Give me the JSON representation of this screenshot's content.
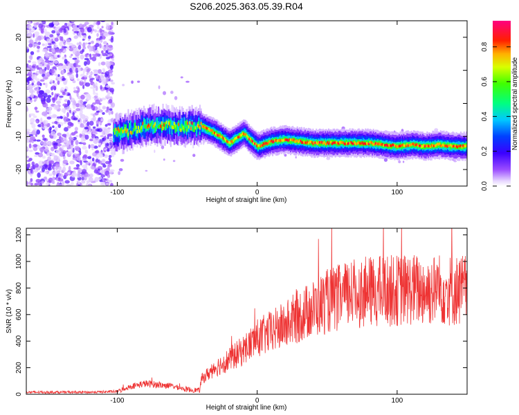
{
  "figure": {
    "title": "S206.2025.363.05.39.R04"
  },
  "chart_data": [
    {
      "type": "heatmap",
      "title": "S206.2025.363.05.39.R04",
      "xlabel": "Height of straight line (km)",
      "ylabel": "Frequency (Hz)",
      "xlim": [
        -165,
        150
      ],
      "ylim": [
        -25,
        25
      ],
      "xticks": [
        -100,
        0,
        100
      ],
      "yticks": [
        -20,
        -10,
        0,
        10,
        20
      ],
      "colorbar": {
        "label": "Normalized spectral amplitude",
        "range": [
          0,
          0.95
        ],
        "ticks": [
          0.0,
          0.2,
          0.4,
          0.6,
          0.8
        ],
        "colormap": "rainbow (white-purple-blue-cyan-green-yellow-red-magenta)"
      },
      "ridge_line": {
        "x": [
          -100,
          -90,
          -80,
          -70,
          -60,
          -50,
          -40,
          -30,
          -20,
          -10,
          0,
          10,
          20,
          30,
          40,
          50,
          60,
          70,
          80,
          90,
          100,
          110,
          120,
          130,
          140,
          150
        ],
        "y": [
          -9,
          -8,
          -7,
          -6.5,
          -7,
          -7,
          -7,
          -9,
          -12,
          -9,
          -13,
          -11.5,
          -11,
          -11.5,
          -12,
          -12,
          -12,
          -12,
          -12,
          -12.5,
          -13,
          -12.5,
          -13,
          -12.5,
          -13,
          -13
        ]
      },
      "grid": false
    },
    {
      "type": "line",
      "xlabel": "Height of straight line (km)",
      "ylabel": "SNR (10 * v/v)",
      "xlim": [
        -165,
        150
      ],
      "ylim": [
        0,
        1250
      ],
      "xticks": [
        -100,
        0,
        100
      ],
      "yticks": [
        0,
        200,
        400,
        600,
        800,
        1000,
        1200
      ],
      "series_color": "#ee3333",
      "envelope": {
        "x": [
          -165,
          -140,
          -120,
          -100,
          -90,
          -80,
          -70,
          -60,
          -50,
          -41,
          -40,
          -30,
          -20,
          -10,
          0,
          10,
          20,
          30,
          40,
          50,
          60,
          70,
          80,
          90,
          100,
          110,
          120,
          130,
          140,
          150
        ],
        "y": [
          15,
          15,
          15,
          20,
          60,
          80,
          70,
          60,
          35,
          30,
          110,
          200,
          260,
          330,
          420,
          470,
          520,
          590,
          640,
          700,
          730,
          760,
          770,
          780,
          780,
          790,
          780,
          790,
          780,
          790
        ]
      },
      "grid": false
    }
  ]
}
